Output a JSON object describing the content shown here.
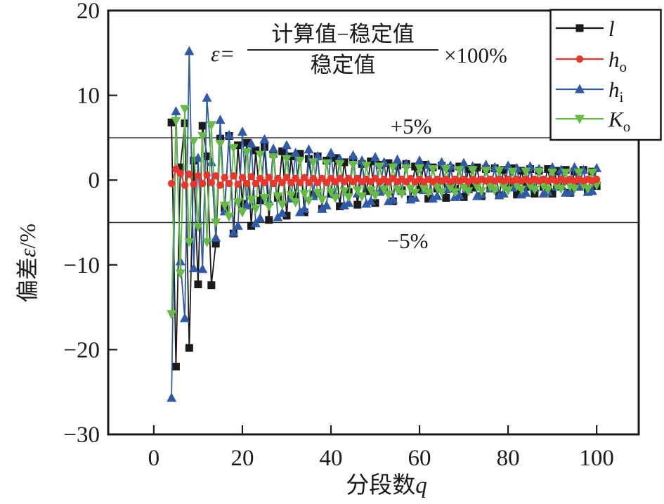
{
  "chart_data": {
    "type": "line",
    "title": "",
    "xlabel_prefix": "分段数",
    "xlabel_var": "q",
    "ylabel_prefix": "偏差",
    "ylabel_var": "ε",
    "ylabel_suffix": "/%",
    "xlim": [
      -10.3,
      109.5
    ],
    "ylim": [
      -30,
      20
    ],
    "grid": false,
    "legend_position": "top-right",
    "x_ticks": [
      0,
      20,
      40,
      60,
      80,
      100
    ],
    "x_tick_labels": [
      "0",
      "20",
      "40",
      "60",
      "80",
      "100"
    ],
    "y_ticks": [
      20,
      10,
      0,
      -10,
      -20,
      -30
    ],
    "y_tick_labels": [
      "20",
      "10",
      "0",
      "−10",
      "−20",
      "−30"
    ],
    "ref_lines": [
      {
        "value": 5,
        "label": "+5%"
      },
      {
        "value": -5,
        "label": "−5%"
      }
    ],
    "formula": {
      "lhs": "ε=",
      "numerator": "计算值−稳定值",
      "denominator": "稳定值",
      "suffix": "×100%"
    },
    "x_start": 4,
    "x_step": 1,
    "series": [
      {
        "name": "l",
        "label_main": "l",
        "label_sub": "",
        "color": "#1a1a1a",
        "marker": "square",
        "values": [
          6.8,
          -22,
          1.5,
          6.7,
          -19.8,
          2.3,
          -12.3,
          6.4,
          2.8,
          -12.4,
          -7.5,
          4.9,
          -3.3,
          5.2,
          -6.3,
          4.1,
          -2.8,
          4.4,
          -5.4,
          3.5,
          -2.4,
          3.9,
          -4.7,
          3.1,
          -2.1,
          3.4,
          -4.2,
          2.8,
          -1.9,
          3.1,
          -3.8,
          2.5,
          -1.7,
          2.8,
          -3.4,
          2.3,
          -1.6,
          2.6,
          -3.1,
          2.1,
          -1.4,
          2.4,
          -2.9,
          1.9,
          -1.3,
          2.2,
          -2.7,
          1.8,
          -1.2,
          2.0,
          -2.5,
          1.7,
          -1.2,
          1.9,
          -2.3,
          1.6,
          -1.1,
          1.8,
          -2.2,
          1.5,
          -1.0,
          1.7,
          -2.1,
          1.4,
          -1.0,
          1.6,
          -2.0,
          1.3,
          -0.9,
          1.5,
          -1.9,
          1.3,
          -0.9,
          1.4,
          -1.8,
          1.2,
          -0.8,
          1.4,
          -1.7,
          1.1,
          -0.8,
          1.3,
          -1.6,
          1.1,
          -0.8,
          1.3,
          -1.6,
          1.1,
          -0.7,
          1.2,
          -1.5,
          1.0,
          -0.7,
          1.2,
          -1.4,
          1.0,
          -0.7
        ]
      },
      {
        "name": "h_o",
        "label_main": "h",
        "label_sub": "o",
        "color": "#e8362d",
        "marker": "circle",
        "values": [
          -0.4,
          1.3,
          0.8,
          -0.6,
          0.7,
          -0.5,
          0.5,
          -0.4,
          0.6,
          -0.3,
          0.5,
          -0.6,
          0.3,
          -0.4,
          0.5,
          -0.5,
          0.3,
          -0.4,
          0.4,
          -0.4,
          0.2,
          -0.3,
          0.3,
          -0.4,
          0.2,
          -0.3,
          0.3,
          -0.3,
          0.2,
          -0.3,
          0.3,
          -0.3,
          0.2,
          -0.3,
          0.2,
          -0.3,
          0.2,
          -0.2,
          0.2,
          -0.2,
          0.2,
          -0.2,
          0.2,
          -0.2,
          0.1,
          -0.2,
          0.2,
          -0.2,
          0.1,
          -0.2,
          0.2,
          -0.2,
          0.1,
          -0.2,
          0.2,
          -0.2,
          0.1,
          -0.2,
          0.1,
          -0.2,
          0.1,
          -0.1,
          0.1,
          -0.2,
          0.1,
          -0.1,
          0.1,
          -0.2,
          0.1,
          -0.1,
          0.1,
          -0.1,
          0.1,
          -0.1,
          0.1,
          -0.1,
          0.1,
          -0.1,
          0.1,
          -0.1,
          0.1,
          -0.1,
          0.1,
          -0.1,
          0.1,
          -0.1,
          0.1,
          -0.1,
          0.1,
          -0.1,
          0.1,
          -0.1,
          0.1,
          -0.1,
          0.1,
          -0.1,
          0.1
        ]
      },
      {
        "name": "h_i",
        "label_main": "h",
        "label_sub": "i",
        "color": "#3059a8",
        "marker": "triangle-up",
        "values": [
          -25.7,
          8.1,
          -9.6,
          -16.3,
          15.2,
          -10.4,
          2.6,
          -10.5,
          9.7,
          2.1,
          -6.8,
          7.1,
          -3.7,
          5.3,
          -6.2,
          -5.4,
          5.7,
          -3.0,
          4.3,
          -5.1,
          -4.5,
          4.8,
          -2.5,
          3.7,
          -4.4,
          -3.9,
          4.1,
          -2.2,
          3.2,
          -3.8,
          -3.4,
          3.6,
          -1.9,
          2.8,
          -3.4,
          -3.0,
          3.2,
          -1.7,
          2.5,
          -3.0,
          -2.7,
          2.9,
          -1.6,
          2.3,
          -2.8,
          -2.5,
          2.7,
          -1.4,
          2.1,
          -2.5,
          -2.3,
          2.4,
          -1.3,
          1.9,
          -2.3,
          -2.1,
          2.3,
          -1.2,
          1.8,
          -2.2,
          -1.9,
          2.1,
          -1.1,
          1.7,
          -2.0,
          -1.8,
          2.0,
          -1.1,
          1.6,
          -1.9,
          -1.7,
          1.8,
          -1.0,
          1.5,
          -1.8,
          -1.6,
          1.7,
          -0.9,
          1.4,
          -1.7,
          -1.5,
          1.6,
          -0.9,
          1.3,
          -1.6,
          -1.4,
          1.5,
          -0.8,
          1.2,
          -1.5,
          -1.4,
          1.5,
          -0.8,
          1.2,
          -1.4,
          -1.3,
          1.4
        ]
      },
      {
        "name": "K_o",
        "label_main": "K",
        "label_sub": "o",
        "color": "#66bb44",
        "marker": "triangle-down",
        "values": [
          -15.8,
          7.0,
          -11.0,
          8.4,
          -7.3,
          4.6,
          -5.5,
          5.2,
          -7.3,
          6.5,
          -5.0,
          4.3,
          -3.0,
          -4.3,
          3.8,
          -2.6,
          -3.8,
          3.3,
          -2.3,
          -3.4,
          3.0,
          -2.1,
          -3.1,
          2.7,
          -1.9,
          -2.9,
          2.5,
          -1.8,
          -2.6,
          2.3,
          -1.6,
          -2.4,
          2.1,
          -1.5,
          -2.3,
          2.0,
          -1.4,
          -2.1,
          1.9,
          -1.3,
          -2.0,
          1.8,
          -1.2,
          -1.9,
          1.7,
          -1.2,
          -1.8,
          1.6,
          -1.1,
          -1.7,
          1.5,
          -1.1,
          -1.6,
          1.4,
          -1.0,
          -1.5,
          1.4,
          -1.0,
          -1.5,
          1.3,
          -0.9,
          -1.4,
          1.3,
          -0.9,
          -1.4,
          1.2,
          -0.9,
          -1.3,
          1.2,
          -0.8,
          -1.3,
          1.1,
          -0.8,
          -1.2,
          1.1,
          -0.8,
          -1.2,
          1.0,
          -0.7,
          -1.1,
          1.0,
          -0.7,
          -1.1,
          1.0,
          -0.7,
          -1.1,
          0.9,
          -0.7,
          -1.0,
          0.9,
          -0.7,
          -1.0,
          0.9,
          -0.6,
          -1.0,
          0.9,
          -0.6
        ]
      }
    ],
    "draw_order": [
      0,
      2,
      3,
      1
    ],
    "axis_color": "#1a1a1a"
  }
}
